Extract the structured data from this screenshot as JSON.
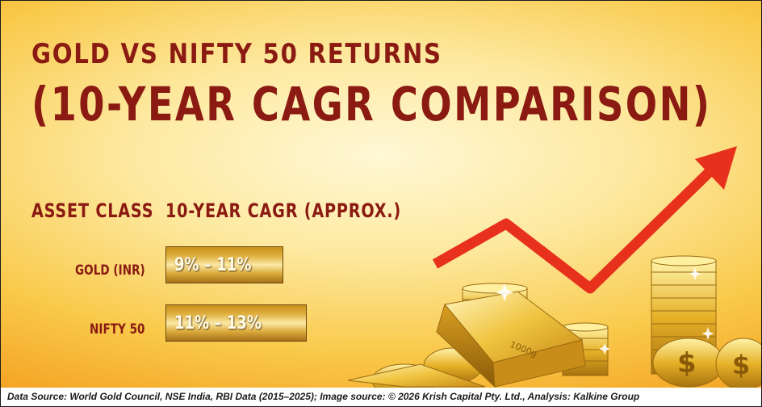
{
  "title": {
    "line1": "GOLD VS NIFTY 50 RETURNS",
    "line2": "(10-YEAR CAGR COMPARISON)"
  },
  "table": {
    "headers": [
      "ASSET CLASS",
      "10-YEAR CAGR (APPROX.)"
    ],
    "rows": [
      {
        "asset": "GOLD (INR)",
        "cagr": "9% – 11%"
      },
      {
        "asset": "NIFTY 50",
        "cagr": "11% – 13%"
      }
    ]
  },
  "footer": "Data Source: World Gold Council, NSE India, RBI Data (2015–2025); Image source: © 2026 Krish Capital Pty. Ltd., Analysis: Kalkine Group",
  "decor": {
    "arrow_color": "#e8311c",
    "gold_color": "#e0a820",
    "gold_bar_stamp": "1000g",
    "icons": [
      "trend-arrow-icon",
      "gold-bar-icon",
      "coin-stack-icon"
    ]
  }
}
